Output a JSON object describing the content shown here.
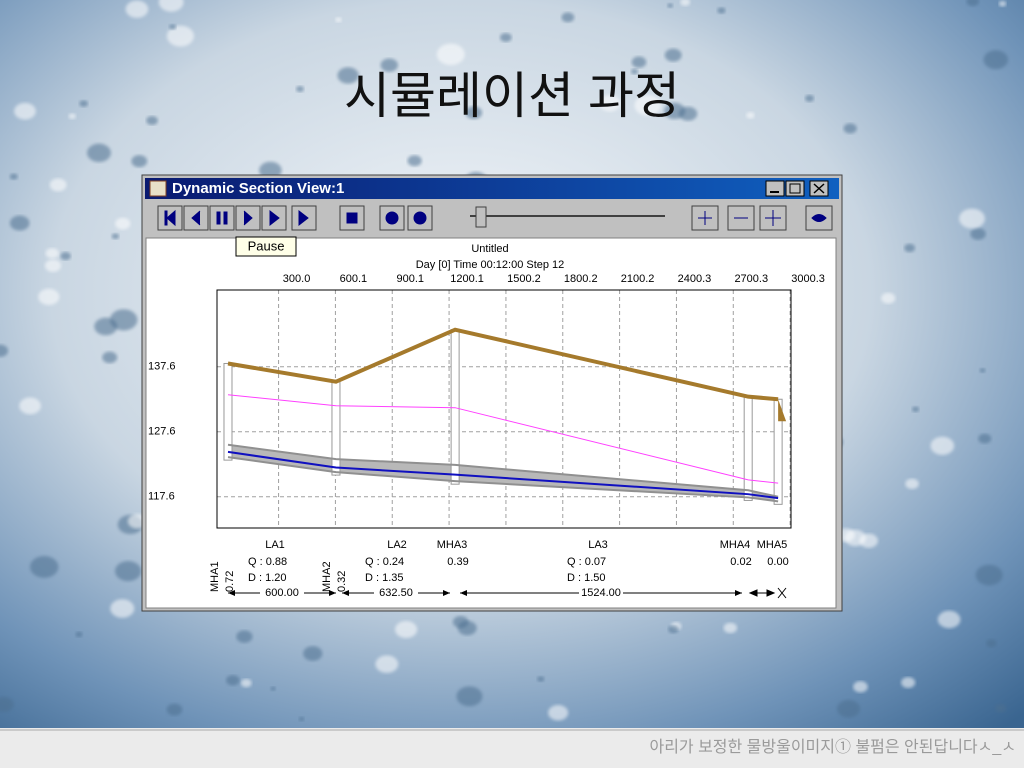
{
  "slide": {
    "title": "시뮬레이션 과정",
    "footer": "아리가 보정한 물방울이미지① 불펌은 안된답니다ㅅ_ㅅ"
  },
  "window": {
    "title": "Dynamic Section View:1",
    "tooltip": "Pause"
  },
  "chart_data": {
    "type": "line",
    "title": "Untitled",
    "subtitle": "Day [0] Time 00:12:00 Step 12",
    "x": [
      33,
      603,
      1232,
      2779,
      2937
    ],
    "xlim": [
      -25,
      3005
    ],
    "xticks": [
      {
        "value": 300,
        "label": "300.0"
      },
      600.1,
      900.1,
      1200.1,
      1500.2,
      1800.2,
      2100.2,
      2400.3,
      2700.3,
      3000.3
    ],
    "ylim": [
      112.8,
      149.4
    ],
    "yticks": [
      137.6,
      127.6,
      117.6
    ],
    "grid": true,
    "series": [
      {
        "color": "#a57a2c",
        "values": [
          138.1,
          135.3,
          143.3,
          133.0,
          132.6
        ]
      },
      {
        "color": "#ff40ff",
        "values": [
          133.3,
          131.6,
          131.3,
          120.2,
          119.7
        ]
      },
      {
        "color": "#909090",
        "values": [
          125.6,
          123.4,
          122.5,
          118.6,
          117.6
        ]
      },
      {
        "color": "#909090",
        "values": [
          123.7,
          121.4,
          120.0,
          117.5,
          116.9
        ]
      },
      {
        "color": "#1010c0",
        "values": [
          124.5,
          122.1,
          121.0,
          118.0,
          117.4
        ]
      }
    ]
  },
  "sections": {
    "reaches": [
      {
        "name": "LA1",
        "q": "Q : 0.88",
        "d": "D : 1.20",
        "length": "600.00"
      },
      {
        "name": "LA2",
        "q": "Q : 0.24",
        "d": "D : 1.35",
        "length": "632.50"
      },
      {
        "name": "LA3",
        "q": "Q : 0.07",
        "d": "D : 1.50",
        "length": "1524.00"
      }
    ],
    "nodes": [
      {
        "name": "MHA1",
        "value": "0.72"
      },
      {
        "name": "MHA2",
        "value": "0.32"
      },
      {
        "name": "MHA3",
        "value": "0.39"
      },
      {
        "name": "MHA4",
        "value": "0.02"
      },
      {
        "name": "MHA5",
        "value": "0.00"
      }
    ]
  }
}
